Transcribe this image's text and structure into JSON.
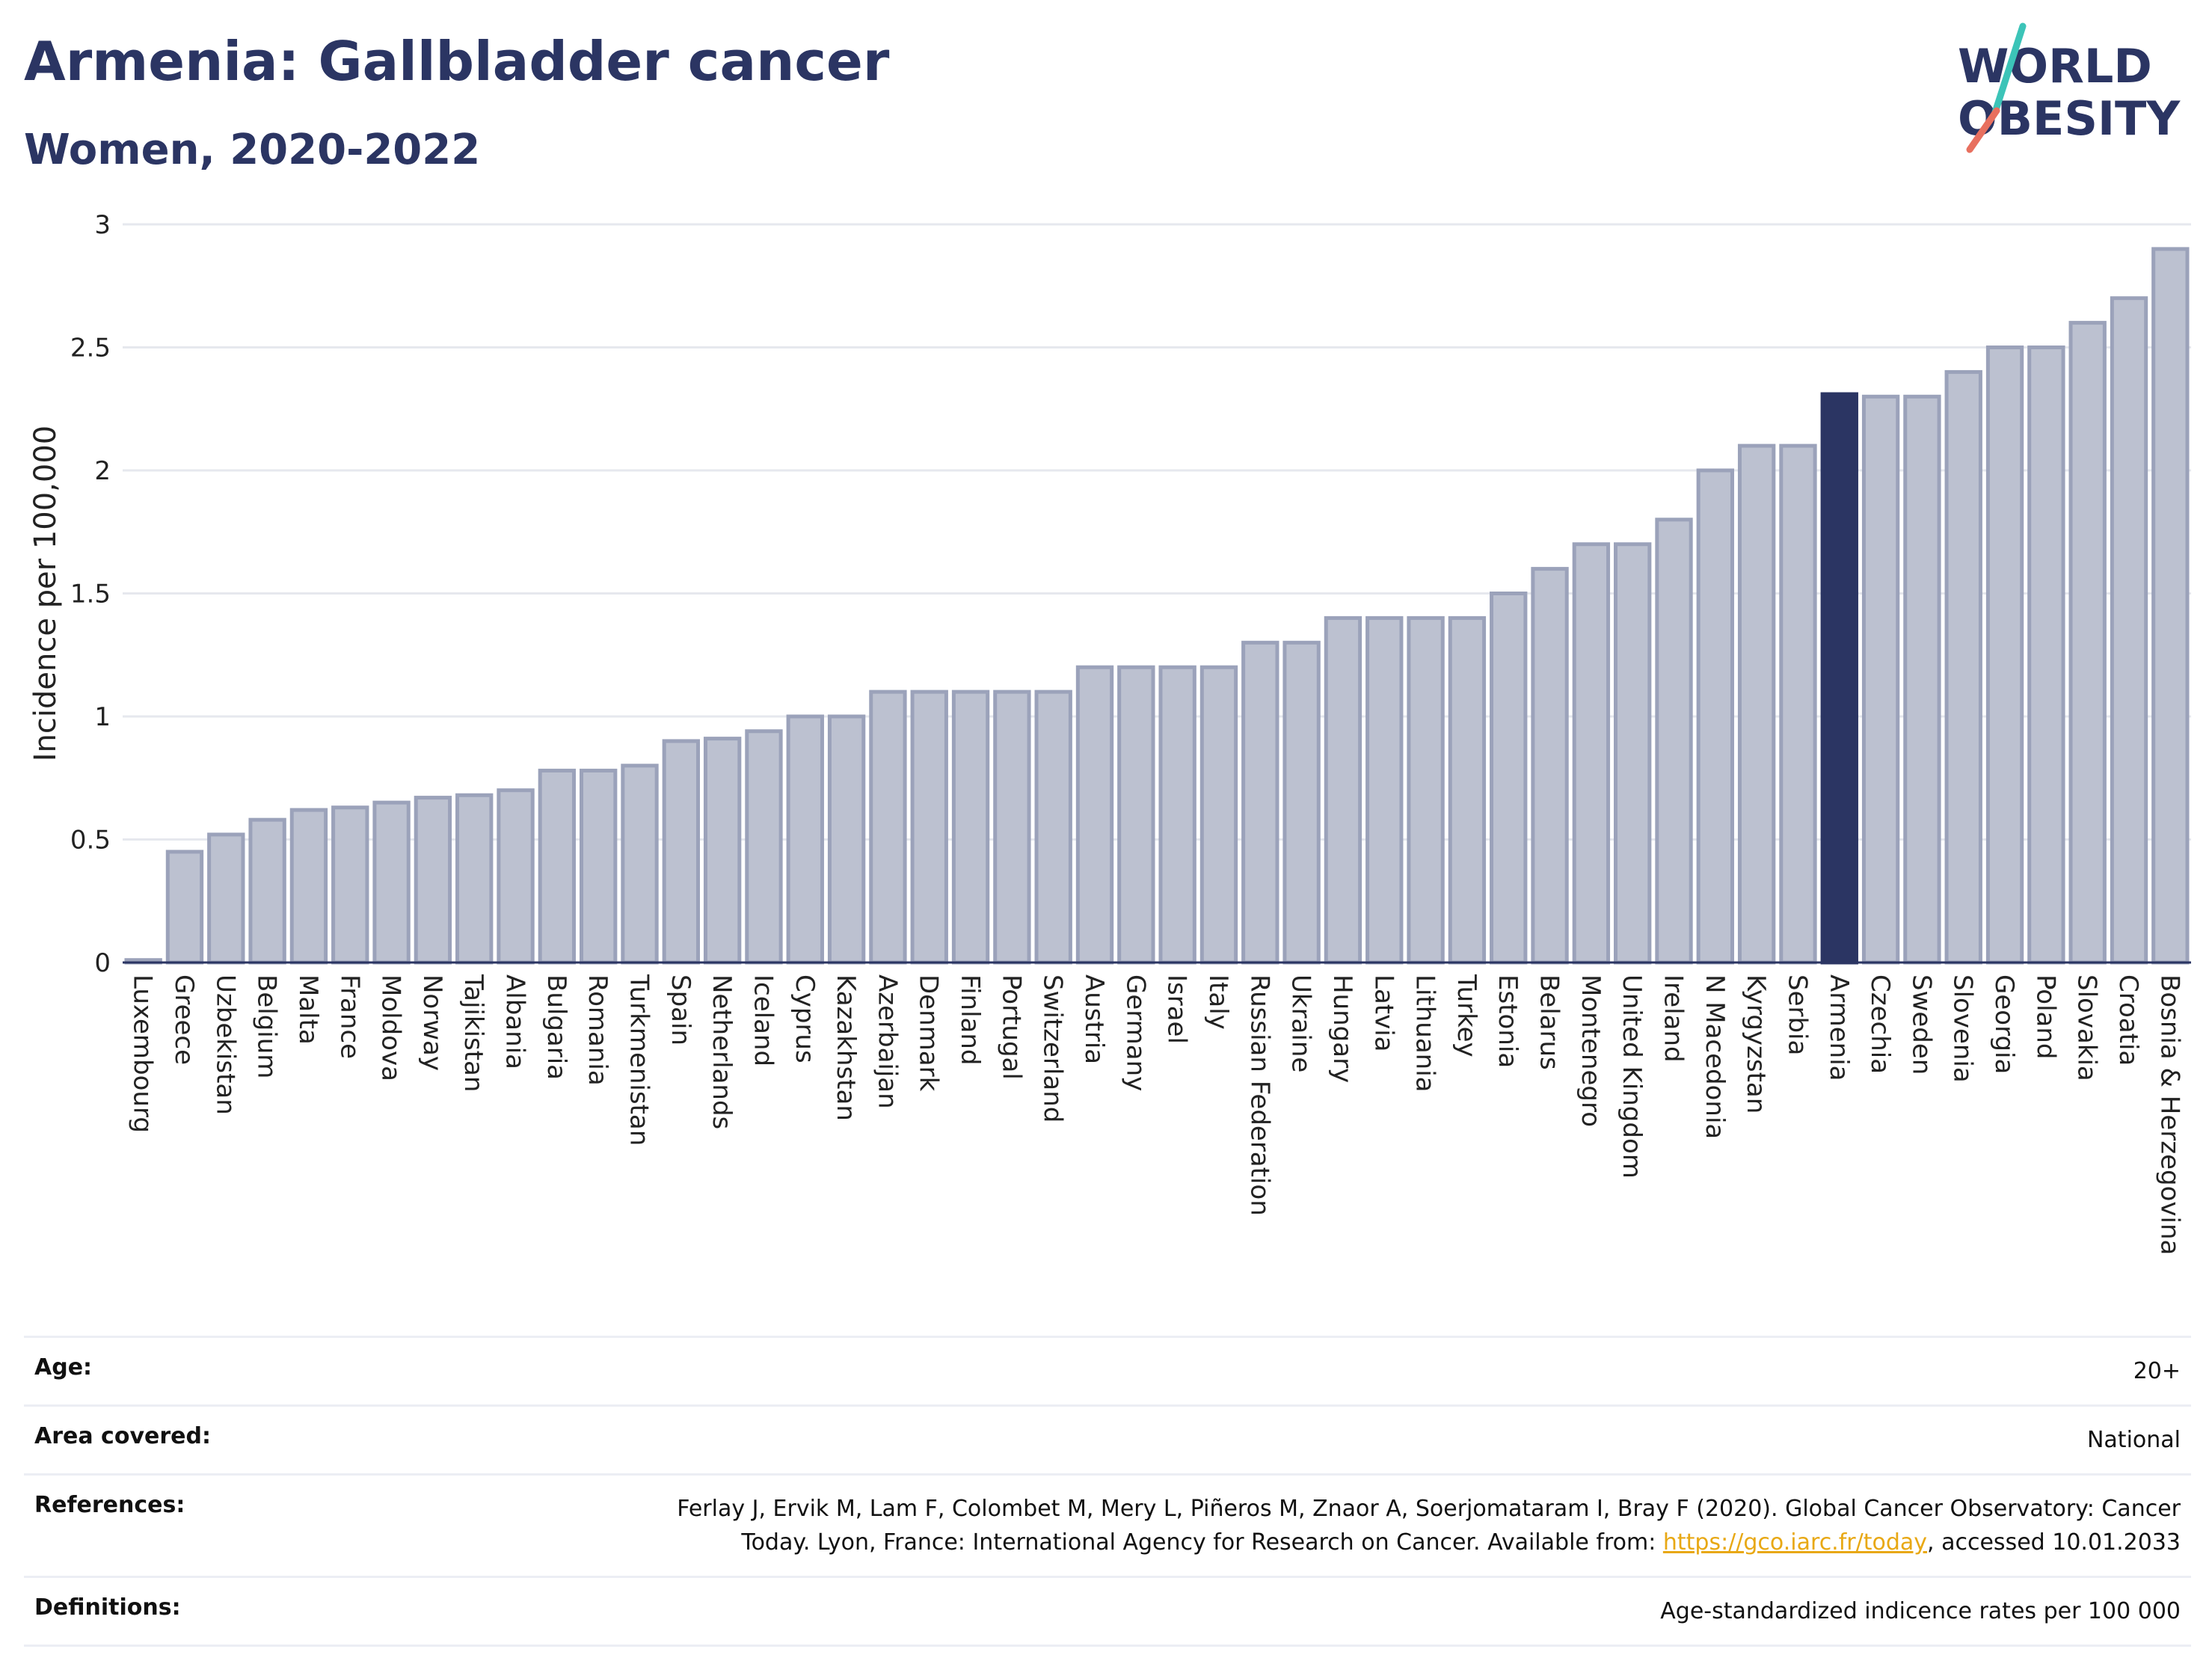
{
  "header": {
    "title": "Armenia: Gallbladder cancer",
    "subtitle": "Women, 2020-2022",
    "logo_line1": "WORLD",
    "logo_line2": "OBESITY"
  },
  "colors": {
    "bar_default": "#bcc1d0",
    "bar_default_border": "#9ba2ba",
    "bar_highlight": "#2b3563",
    "title": "#2b3563",
    "logo_teal": "#3cc4b8",
    "logo_coral": "#e8705f",
    "link": "#e8a814"
  },
  "chart_data": {
    "type": "bar",
    "title": "",
    "xlabel": "",
    "ylabel": "Incidence per 100,000",
    "ylim": [
      0,
      3
    ],
    "yticks": [
      0,
      0.5,
      1,
      1.5,
      2,
      2.5,
      3
    ],
    "ytick_labels": [
      "0",
      "0.5",
      "1",
      "1.5",
      "2",
      "2.5",
      "3"
    ],
    "grid": true,
    "highlight": "Armenia",
    "categories": [
      "Luxembourg",
      "Greece",
      "Uzbekistan",
      "Belgium",
      "Malta",
      "France",
      "Moldova",
      "Norway",
      "Tajikistan",
      "Albania",
      "Bulgaria",
      "Romania",
      "Turkmenistan",
      "Spain",
      "Netherlands",
      "Iceland",
      "Cyprus",
      "Kazakhstan",
      "Azerbaijan",
      "Denmark",
      "Finland",
      "Portugal",
      "Switzerland",
      "Austria",
      "Germany",
      "Israel",
      "Italy",
      "Russian Federation",
      "Ukraine",
      "Hungary",
      "Latvia",
      "Lithuania",
      "Turkey",
      "Estonia",
      "Belarus",
      "Montenegro",
      "United Kingdom",
      "Ireland",
      "N Macedonia",
      "Kyrgyzstan",
      "Serbia",
      "Armenia",
      "Czechia",
      "Sweden",
      "Slovenia",
      "Georgia",
      "Poland",
      "Slovakia",
      "Croatia",
      "Bosnia & Herzegovina"
    ],
    "values": [
      0.01,
      0.45,
      0.52,
      0.58,
      0.62,
      0.63,
      0.65,
      0.67,
      0.68,
      0.7,
      0.78,
      0.78,
      0.8,
      0.9,
      0.91,
      0.94,
      1.0,
      1.0,
      1.1,
      1.1,
      1.1,
      1.1,
      1.1,
      1.2,
      1.2,
      1.2,
      1.2,
      1.3,
      1.3,
      1.4,
      1.4,
      1.4,
      1.4,
      1.5,
      1.6,
      1.7,
      1.7,
      1.8,
      2.0,
      2.1,
      2.1,
      2.31,
      2.3,
      2.3,
      2.4,
      2.5,
      2.5,
      2.6,
      2.7,
      2.9
    ]
  },
  "info": {
    "age_label": "Age:",
    "age_value": "20+",
    "area_label": "Area covered:",
    "area_value": "National",
    "references_label": "References:",
    "references_text_1": "Ferlay J, Ervik M, Lam F, Colombet M, Mery L, Piñeros M, Znaor A, Soerjomataram I, Bray F (2020). Global Cancer Observatory: Cancer Today. Lyon, France: International Agency for Research on Cancer. Available from: ",
    "references_link": "https://gco.iarc.fr/today",
    "references_text_2": ", accessed 10.01.2033",
    "definitions_label": "Definitions:",
    "definitions_value": "Age-standardized indicence rates per 100 000"
  }
}
